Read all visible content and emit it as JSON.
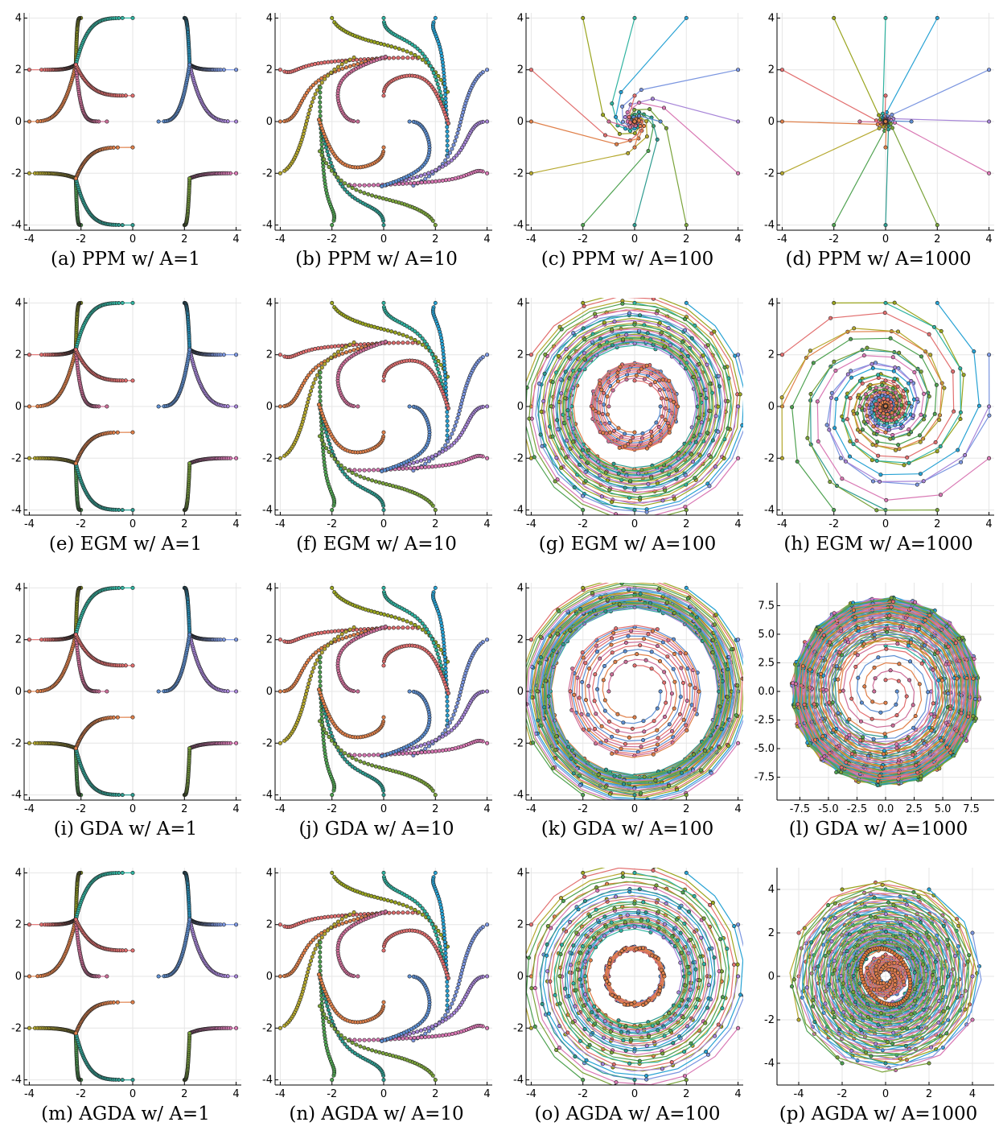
{
  "palette": [
    "#e26f6f",
    "#e0804a",
    "#b5a82e",
    "#9aa51f",
    "#2fb3a0",
    "#27a2d4",
    "#7b96e0",
    "#a785d8",
    "#d978b4",
    "#4fa251",
    "#2d9b8f",
    "#7aa33a",
    "#ce6f9a",
    "#5d8fd3"
  ],
  "panels": [
    {
      "id": "a",
      "caption": "(a) PPM w/ A=1",
      "method": "PPM",
      "A": 1,
      "regime": "saddle4",
      "xticks": [
        "-4",
        "-2",
        "0",
        "2",
        "4"
      ],
      "yticks": [
        "4",
        "2",
        "0",
        "-2",
        "-4"
      ],
      "tick_values": [
        -4,
        -2,
        0,
        2,
        4
      ],
      "range": [
        -4.2,
        4.2
      ]
    },
    {
      "id": "b",
      "caption": "(b) PPM w/ A=10",
      "method": "PPM",
      "A": 10,
      "regime": "limitcycle",
      "xticks": [
        "-4",
        "-2",
        "0",
        "2",
        "4"
      ],
      "yticks": [
        "4",
        "2",
        "0",
        "-2",
        "-4"
      ],
      "tick_values": [
        -4,
        -2,
        0,
        2,
        4
      ],
      "range": [
        -4.2,
        4.2
      ]
    },
    {
      "id": "c",
      "caption": "(c) PPM w/ A=100",
      "method": "PPM",
      "A": 100,
      "regime": "converge",
      "xticks": [
        "-4",
        "-2",
        "0",
        "2",
        "4"
      ],
      "yticks": [
        "4",
        "2",
        "0",
        "-2",
        "-4"
      ],
      "tick_values": [
        -4,
        -2,
        0,
        2,
        4
      ],
      "range": [
        -4.2,
        4.2
      ]
    },
    {
      "id": "d",
      "caption": "(d) PPM w/ A=1000",
      "method": "PPM",
      "A": 1000,
      "regime": "converge",
      "xticks": [
        "-4",
        "-2",
        "0",
        "2",
        "4"
      ],
      "yticks": [
        "4",
        "2",
        "0",
        "-2",
        "-4"
      ],
      "tick_values": [
        -4,
        -2,
        0,
        2,
        4
      ],
      "range": [
        -4.2,
        4.2
      ]
    },
    {
      "id": "e",
      "caption": "(e) EGM w/ A=1",
      "method": "EGM",
      "A": 1,
      "regime": "saddle4",
      "xticks": [
        "-4",
        "-2",
        "0",
        "2",
        "4"
      ],
      "yticks": [
        "4",
        "2",
        "0",
        "-2",
        "-4"
      ],
      "tick_values": [
        -4,
        -2,
        0,
        2,
        4
      ],
      "range": [
        -4.2,
        4.2
      ]
    },
    {
      "id": "f",
      "caption": "(f) EGM w/ A=10",
      "method": "EGM",
      "A": 10,
      "regime": "limitcycle",
      "xticks": [
        "-4",
        "-2",
        "0",
        "2",
        "4"
      ],
      "yticks": [
        "4",
        "2",
        "0",
        "-2",
        "-4"
      ],
      "tick_values": [
        -4,
        -2,
        0,
        2,
        4
      ],
      "range": [
        -4.2,
        4.2
      ]
    },
    {
      "id": "g",
      "caption": "(g) EGM w/ A=100",
      "method": "EGM",
      "A": 100,
      "regime": "spiral",
      "xticks": [
        "-4",
        "-2",
        "0",
        "2",
        "4"
      ],
      "yticks": [
        "4",
        "2",
        "0",
        "-2",
        "-4"
      ],
      "tick_values": [
        -4,
        -2,
        0,
        2,
        4
      ],
      "range": [
        -4.2,
        4.2
      ]
    },
    {
      "id": "h",
      "caption": "(h) EGM w/ A=1000",
      "method": "EGM",
      "A": 1000,
      "regime": "spiral",
      "xticks": [
        "-4",
        "-2",
        "0",
        "2",
        "4"
      ],
      "yticks": [
        "4",
        "2",
        "0",
        "-2",
        "-4"
      ],
      "tick_values": [
        -4,
        -2,
        0,
        2,
        4
      ],
      "range": [
        -4.2,
        4.2
      ]
    },
    {
      "id": "i",
      "caption": "(i) GDA w/ A=1",
      "method": "GDA",
      "A": 1,
      "regime": "saddle4",
      "xticks": [
        "-4",
        "-2",
        "0",
        "2",
        "4"
      ],
      "yticks": [
        "4",
        "2",
        "0",
        "-2",
        "-4"
      ],
      "tick_values": [
        -4,
        -2,
        0,
        2,
        4
      ],
      "range": [
        -4.2,
        4.2
      ]
    },
    {
      "id": "j",
      "caption": "(j) GDA w/ A=10",
      "method": "GDA",
      "A": 10,
      "regime": "limitcycle",
      "xticks": [
        "-4",
        "-2",
        "0",
        "2",
        "4"
      ],
      "yticks": [
        "4",
        "2",
        "0",
        "-2",
        "-4"
      ],
      "tick_values": [
        -4,
        -2,
        0,
        2,
        4
      ],
      "range": [
        -4.2,
        4.2
      ]
    },
    {
      "id": "k",
      "caption": "(k) GDA w/ A=100",
      "method": "GDA",
      "A": 100,
      "regime": "spiralout",
      "xticks": [
        "-4",
        "-2",
        "0",
        "2",
        "4"
      ],
      "yticks": [
        "4",
        "2",
        "0",
        "-2",
        "-4"
      ],
      "tick_values": [
        -4,
        -2,
        0,
        2,
        4
      ],
      "range": [
        -4.2,
        4.2
      ]
    },
    {
      "id": "l",
      "caption": "(l) GDA w/ A=1000",
      "method": "GDA",
      "A": 1000,
      "regime": "diverge",
      "xticks": [
        "-7.5",
        "-5.0",
        "-2.5",
        "0.0",
        "2.5",
        "5.0",
        "7.5"
      ],
      "yticks": [
        "7.5",
        "5.0",
        "2.5",
        "0.0",
        "-2.5",
        "-5.0",
        "-7.5"
      ],
      "tick_values": [
        -7.5,
        -5,
        -2.5,
        0,
        2.5,
        5,
        7.5
      ],
      "range": [
        -9.5,
        9.5
      ]
    },
    {
      "id": "m",
      "caption": "(m) AGDA w/ A=1",
      "method": "AGDA",
      "A": 1,
      "regime": "saddle4",
      "xticks": [
        "-4",
        "-2",
        "0",
        "2",
        "4"
      ],
      "yticks": [
        "4",
        "2",
        "0",
        "-2",
        "-4"
      ],
      "tick_values": [
        -4,
        -2,
        0,
        2,
        4
      ],
      "range": [
        -4.2,
        4.2
      ]
    },
    {
      "id": "n",
      "caption": "(n) AGDA w/ A=10",
      "method": "AGDA",
      "A": 10,
      "regime": "limitcycle",
      "xticks": [
        "-4",
        "-2",
        "0",
        "2",
        "4"
      ],
      "yticks": [
        "4",
        "2",
        "0",
        "-2",
        "-4"
      ],
      "tick_values": [
        -4,
        -2,
        0,
        2,
        4
      ],
      "range": [
        -4.2,
        4.2
      ]
    },
    {
      "id": "o",
      "caption": "(o) AGDA w/ A=100",
      "method": "AGDA",
      "A": 100,
      "regime": "spiral",
      "xticks": [
        "-4",
        "-2",
        "0",
        "2",
        "4"
      ],
      "yticks": [
        "4",
        "2",
        "0",
        "-2",
        "-4"
      ],
      "tick_values": [
        -4,
        -2,
        0,
        2,
        4
      ],
      "range": [
        -4.2,
        4.2
      ]
    },
    {
      "id": "p",
      "caption": "(p) AGDA w/ A=1000",
      "method": "AGDA",
      "A": 1000,
      "regime": "annulus",
      "xticks": [
        "-4",
        "-2",
        "0",
        "2",
        "4"
      ],
      "yticks": [
        "4",
        "2",
        "0",
        "-2",
        "-4"
      ],
      "tick_values": [
        -4,
        -2,
        0,
        2,
        4
      ],
      "range": [
        -5.0,
        5.0
      ]
    }
  ],
  "chart_data": [
    {
      "type": "scatter",
      "id": "a",
      "title": "(a) PPM w/ A=1",
      "xlim": [
        -4,
        4
      ],
      "ylim": [
        -4,
        4
      ],
      "grid": true,
      "initial_points": [
        [
          -4,
          2
        ],
        [
          -4,
          0
        ],
        [
          -4,
          -2
        ],
        [
          -2,
          4
        ],
        [
          0,
          4
        ],
        [
          2,
          4
        ],
        [
          4,
          2
        ],
        [
          4,
          0
        ],
        [
          4,
          -2
        ],
        [
          -2,
          -4
        ],
        [
          0,
          -4
        ],
        [
          2,
          -4
        ],
        [
          -1,
          0
        ],
        [
          1,
          0
        ],
        [
          0,
          1
        ],
        [
          0,
          -1
        ]
      ],
      "fixed_points": [
        [
          -2.2,
          2.2
        ],
        [
          2.2,
          2.2
        ],
        [
          -2.2,
          -2.2
        ],
        [
          2.2,
          -2.2
        ]
      ]
    },
    {
      "type": "scatter",
      "id": "b",
      "title": "(b) PPM w/ A=10",
      "xlim": [
        -4,
        4
      ],
      "ylim": [
        -4,
        4
      ],
      "grid": true,
      "limit_cycle_halfwidth": 2.5
    },
    {
      "type": "scatter",
      "id": "c",
      "title": "(c) PPM w/ A=100",
      "xlim": [
        -4,
        4
      ],
      "ylim": [
        -4,
        4
      ],
      "grid": true,
      "converges_to": [
        0,
        0
      ]
    },
    {
      "type": "scatter",
      "id": "d",
      "title": "(d) PPM w/ A=1000",
      "xlim": [
        -4,
        4
      ],
      "ylim": [
        -4,
        4
      ],
      "grid": true,
      "converges_to": [
        0,
        0
      ]
    },
    {
      "type": "scatter",
      "id": "e",
      "title": "(e) EGM w/ A=1",
      "xlim": [
        -4,
        4
      ],
      "ylim": [
        -4,
        4
      ],
      "grid": true,
      "fixed_points": [
        [
          -2.2,
          2.2
        ],
        [
          2.2,
          2.2
        ],
        [
          -2.2,
          -2.2
        ],
        [
          2.2,
          -2.2
        ]
      ]
    },
    {
      "type": "scatter",
      "id": "f",
      "title": "(f) EGM w/ A=10",
      "xlim": [
        -4,
        4
      ],
      "ylim": [
        -4,
        4
      ],
      "grid": true,
      "limit_cycle_halfwidth": 2.5
    },
    {
      "type": "scatter",
      "id": "g",
      "title": "(g) EGM w/ A=100",
      "xlim": [
        -4,
        4
      ],
      "ylim": [
        -4,
        4
      ],
      "grid": true
    },
    {
      "type": "scatter",
      "id": "h",
      "title": "(h) EGM w/ A=1000",
      "xlim": [
        -4,
        4
      ],
      "ylim": [
        -4,
        4
      ],
      "grid": true,
      "converges_to": [
        0,
        0
      ]
    },
    {
      "type": "scatter",
      "id": "i",
      "title": "(i) GDA w/ A=1",
      "xlim": [
        -4,
        4
      ],
      "ylim": [
        -4,
        4
      ],
      "grid": true,
      "fixed_points": [
        [
          -2.2,
          2.2
        ],
        [
          2.2,
          2.2
        ],
        [
          -2.2,
          -2.2
        ],
        [
          2.2,
          -2.2
        ]
      ]
    },
    {
      "type": "scatter",
      "id": "j",
      "title": "(j) GDA w/ A=10",
      "xlim": [
        -4,
        4
      ],
      "ylim": [
        -4,
        4
      ],
      "grid": true,
      "limit_cycle_halfwidth": 2.5
    },
    {
      "type": "scatter",
      "id": "k",
      "title": "(k) GDA w/ A=100",
      "xlim": [
        -4,
        4
      ],
      "ylim": [
        -4,
        4
      ],
      "grid": true
    },
    {
      "type": "scatter",
      "id": "l",
      "title": "(l) GDA w/ A=1000",
      "xlim": [
        -9,
        9
      ],
      "ylim": [
        -9,
        9
      ],
      "grid": true
    },
    {
      "type": "scatter",
      "id": "m",
      "title": "(m) AGDA w/ A=1",
      "xlim": [
        -4,
        4
      ],
      "ylim": [
        -4,
        4
      ],
      "grid": true,
      "fixed_points": [
        [
          -2.2,
          2.2
        ],
        [
          2.2,
          2.2
        ],
        [
          -2.2,
          -2.2
        ],
        [
          2.2,
          -2.2
        ]
      ]
    },
    {
      "type": "scatter",
      "id": "n",
      "title": "(n) AGDA w/ A=10",
      "xlim": [
        -4,
        4
      ],
      "ylim": [
        -4,
        4
      ],
      "grid": true,
      "limit_cycle_halfwidth": 2.5
    },
    {
      "type": "scatter",
      "id": "o",
      "title": "(o) AGDA w/ A=100",
      "xlim": [
        -4,
        4
      ],
      "ylim": [
        -4,
        4
      ],
      "grid": true
    },
    {
      "type": "scatter",
      "id": "p",
      "title": "(p) AGDA w/ A=1000",
      "xlim": [
        -4.5,
        4.5
      ],
      "ylim": [
        -4.5,
        4.5
      ],
      "grid": true
    }
  ]
}
